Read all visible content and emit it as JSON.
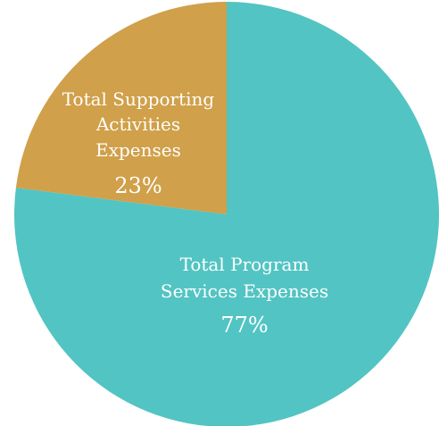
{
  "chart_data": {
    "type": "pie",
    "title": "",
    "slices": [
      {
        "label_lines": [
          "Total Program",
          "Services Expenses"
        ],
        "percent_label": "77%",
        "value": 77,
        "color": "#52C4C3"
      },
      {
        "label_lines": [
          "Total Supporting",
          "Activities",
          "Expenses"
        ],
        "percent_label": "23%",
        "value": 23,
        "color": "#D0A04A"
      }
    ],
    "start_angle_deg": 0,
    "direction": "clockwise",
    "legend": "none"
  }
}
